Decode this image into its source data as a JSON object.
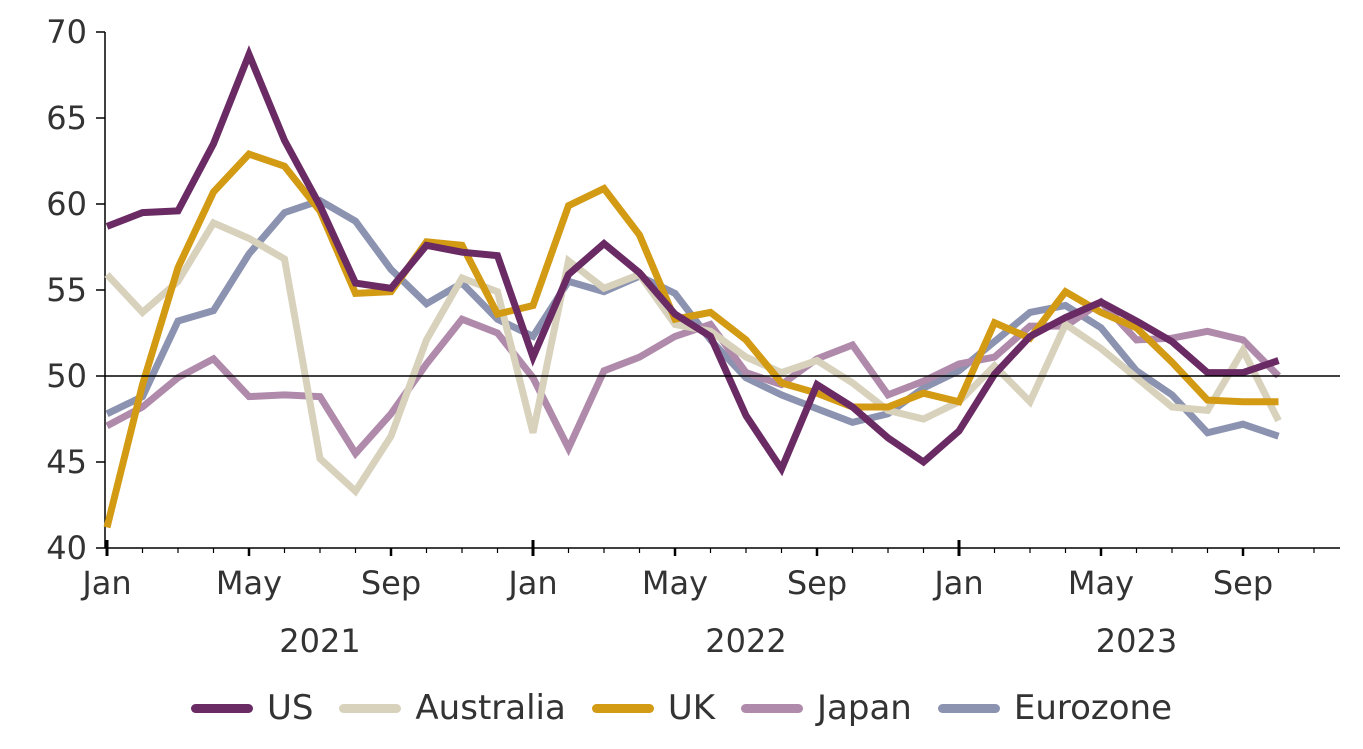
{
  "chart_data": {
    "type": "line",
    "title": "",
    "xlabel": "",
    "ylabel": "",
    "ylim": [
      40,
      70
    ],
    "yticks": [
      40,
      45,
      50,
      55,
      60,
      65,
      70
    ],
    "reference_line": 50,
    "grid": false,
    "legend_position": "bottom",
    "x": [
      "2021-01",
      "2021-02",
      "2021-03",
      "2021-04",
      "2021-05",
      "2021-06",
      "2021-07",
      "2021-08",
      "2021-09",
      "2021-10",
      "2021-11",
      "2021-12",
      "2022-01",
      "2022-02",
      "2022-03",
      "2022-04",
      "2022-05",
      "2022-06",
      "2022-07",
      "2022-08",
      "2022-09",
      "2022-10",
      "2022-11",
      "2022-12",
      "2023-01",
      "2023-02",
      "2023-03",
      "2023-04",
      "2023-05",
      "2023-06",
      "2023-07",
      "2023-08",
      "2023-09",
      "2023-10",
      "2023-11"
    ],
    "x_tick_labels": [
      {
        "month": "2021-01",
        "label": "Jan"
      },
      {
        "month": "2021-05",
        "label": "May"
      },
      {
        "month": "2021-09",
        "label": "Sep"
      },
      {
        "month": "2022-01",
        "label": "Jan"
      },
      {
        "month": "2022-05",
        "label": "May"
      },
      {
        "month": "2022-09",
        "label": "Sep"
      },
      {
        "month": "2023-01",
        "label": "Jan"
      },
      {
        "month": "2023-05",
        "label": "May"
      },
      {
        "month": "2023-09",
        "label": "Sep"
      }
    ],
    "year_labels": [
      {
        "month": "2021-07",
        "label": "2021"
      },
      {
        "month": "2022-07",
        "label": "2022"
      },
      {
        "month": "2023-06",
        "label": "2023"
      }
    ],
    "year_boundaries": [
      "2022-01",
      "2023-01"
    ],
    "series": [
      {
        "name": "Eurozone",
        "color": "#8b93b0",
        "values": [
          47.8,
          48.8,
          53.2,
          53.8,
          57.1,
          59.5,
          60.2,
          59.0,
          56.2,
          54.2,
          55.4,
          53.3,
          52.3,
          55.5,
          54.9,
          55.8,
          54.8,
          52.1,
          49.9,
          48.9,
          48.1,
          47.3,
          47.8,
          49.3,
          50.3,
          52.0,
          53.7,
          54.1,
          52.8,
          50.3,
          48.9,
          46.7,
          47.2,
          46.5,
          null
        ]
      },
      {
        "name": "Japan",
        "color": "#b08aab",
        "values": [
          47.1,
          48.2,
          49.9,
          51.0,
          48.8,
          48.9,
          48.8,
          45.5,
          47.8,
          50.7,
          53.3,
          52.5,
          49.9,
          45.8,
          50.3,
          51.1,
          52.3,
          53.0,
          50.2,
          49.5,
          51.0,
          51.8,
          48.9,
          49.7,
          50.7,
          51.1,
          52.9,
          52.9,
          54.3,
          52.1,
          52.2,
          52.6,
          52.1,
          50.0,
          null
        ]
      },
      {
        "name": "Australia",
        "color": "#d8d2bc",
        "values": [
          55.9,
          53.7,
          55.5,
          58.9,
          58.0,
          56.8,
          45.2,
          43.3,
          46.5,
          52.1,
          55.7,
          54.9,
          46.7,
          56.7,
          55.1,
          55.9,
          53.0,
          52.6,
          51.1,
          50.2,
          50.9,
          49.6,
          48.0,
          47.5,
          48.5,
          50.6,
          48.5,
          53.0,
          51.6,
          49.9,
          48.2,
          48.0,
          51.5,
          47.4,
          null
        ]
      },
      {
        "name": "UK",
        "color": "#d39a14",
        "values": [
          41.2,
          49.5,
          56.3,
          60.7,
          62.9,
          62.2,
          59.6,
          54.8,
          54.9,
          57.8,
          57.6,
          53.6,
          54.1,
          59.9,
          60.9,
          58.2,
          53.3,
          53.7,
          52.1,
          49.6,
          49.0,
          48.2,
          48.2,
          49.0,
          48.5,
          53.1,
          52.2,
          54.9,
          53.7,
          52.8,
          50.8,
          48.6,
          48.5,
          48.5,
          null
        ]
      },
      {
        "name": "US",
        "color": "#6a2a64",
        "values": [
          58.7,
          59.5,
          59.6,
          63.5,
          68.7,
          63.7,
          59.9,
          55.4,
          55.1,
          57.6,
          57.2,
          57.0,
          51.1,
          55.9,
          57.7,
          56.0,
          53.6,
          52.3,
          47.7,
          44.6,
          49.5,
          48.2,
          46.4,
          45.0,
          46.8,
          50.1,
          52.3,
          53.4,
          54.3,
          53.2,
          52.0,
          50.2,
          50.2,
          50.9,
          null
        ]
      }
    ],
    "legend_order": [
      "US",
      "Australia",
      "UK",
      "Japan",
      "Eurozone"
    ]
  }
}
